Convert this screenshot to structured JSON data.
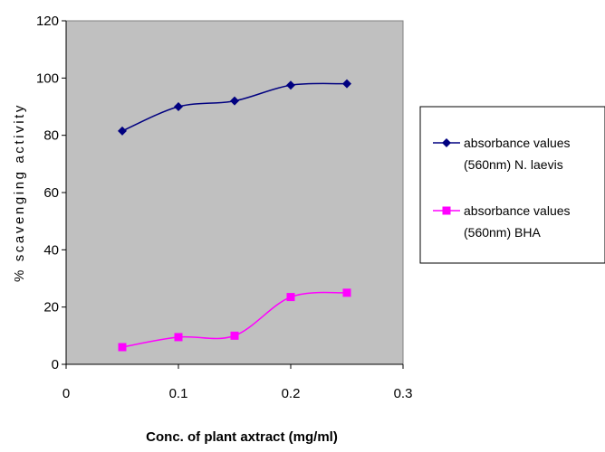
{
  "chart_data": {
    "type": "line",
    "title": "",
    "xlabel": "Conc. of plant axtract (mg/ml)",
    "ylabel": "% scavenging activity",
    "xlim": [
      0,
      0.3
    ],
    "ylim": [
      0,
      120
    ],
    "x_ticks": [
      "0",
      "0.1",
      "0.2",
      "0.3"
    ],
    "y_ticks": [
      "0",
      "20",
      "40",
      "60",
      "80",
      "100",
      "120"
    ],
    "grid": false,
    "legend_position": "right",
    "plot_background": "#c0c0c0",
    "series": [
      {
        "name_lines": [
          "absorbance values",
          "(560nm) N. laevis"
        ],
        "color": "#000080",
        "marker": "diamond",
        "smooth": true,
        "x": [
          0.05,
          0.1,
          0.15,
          0.2,
          0.25
        ],
        "y": [
          81.5,
          90,
          92,
          97.5,
          98
        ]
      },
      {
        "name_lines": [
          "absorbance values",
          "(560nm) BHA"
        ],
        "color": "#ff00ff",
        "marker": "square",
        "smooth": true,
        "x": [
          0.05,
          0.1,
          0.15,
          0.2,
          0.25
        ],
        "y": [
          6,
          9.5,
          10,
          23.5,
          25
        ]
      }
    ]
  }
}
